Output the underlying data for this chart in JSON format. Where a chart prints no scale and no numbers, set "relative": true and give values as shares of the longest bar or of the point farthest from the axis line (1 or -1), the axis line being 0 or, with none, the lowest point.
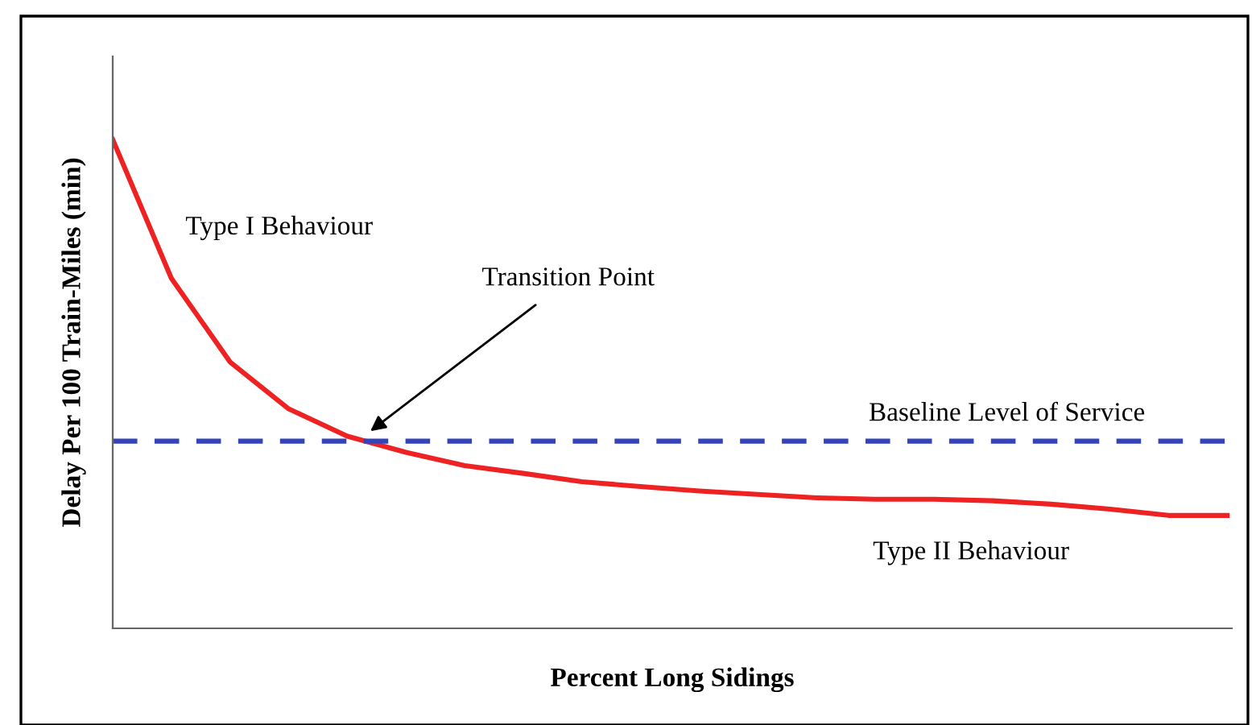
{
  "chart_data": {
    "type": "line",
    "relative": true,
    "xlabel": "Percent Long Sidings",
    "ylabel": "Delay Per 100 Train-Miles (min)",
    "categories": [
      null,
      null,
      null,
      null,
      null,
      null,
      null,
      null,
      null,
      null,
      null,
      null,
      null,
      null,
      null,
      null,
      null,
      null,
      null,
      null
    ],
    "series": [
      {
        "color": "#ee2222",
        "values": [
          1.0,
          0.716,
          0.545,
          0.449,
          0.393,
          0.36,
          0.333,
          0.317,
          0.3,
          0.29,
          0.281,
          0.274,
          0.267,
          0.264,
          0.264,
          0.261,
          0.254,
          0.244,
          0.231,
          0.231
        ]
      }
    ],
    "ref_lines": [
      {
        "axis": "y",
        "value": 0.383,
        "label": "Baseline Level of Service",
        "color": "#3344bb",
        "line_style": "dashed"
      }
    ],
    "annotations": [
      "Type I Behaviour",
      "Transition Point",
      "Type II Behaviour"
    ],
    "grid": false,
    "legend": false,
    "marker": "none",
    "line_style": "solid"
  }
}
